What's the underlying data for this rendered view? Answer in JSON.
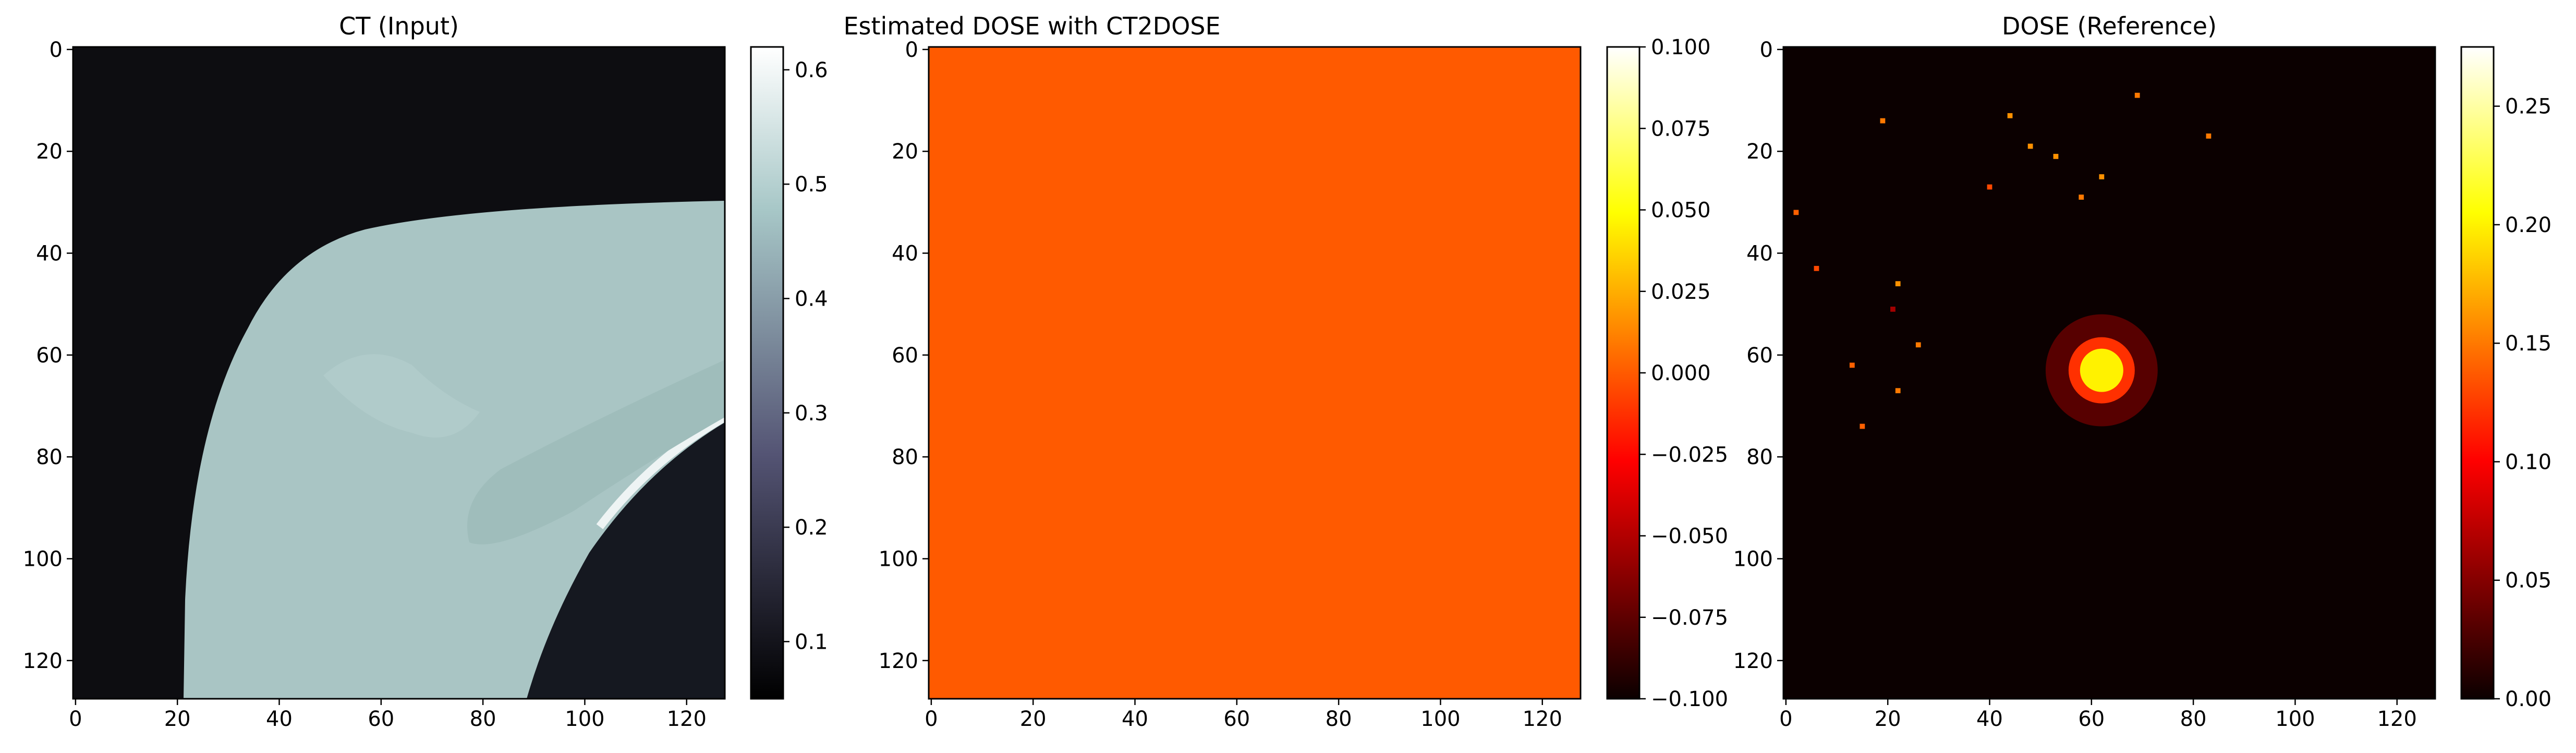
{
  "chart_data": [
    {
      "type": "heatmap",
      "title": "CT (Input)",
      "colormap": "bone",
      "x_ticks": [
        "0",
        "20",
        "40",
        "60",
        "80",
        "100",
        "120"
      ],
      "y_ticks": [
        "0",
        "20",
        "40",
        "60",
        "80",
        "100",
        "120"
      ],
      "xlim": [
        -0.5,
        127.5
      ],
      "ylim": [
        127.5,
        -0.5
      ],
      "colorbar": {
        "range": [
          0.05,
          0.62
        ],
        "ticks": [
          "0.1",
          "0.2",
          "0.3",
          "0.4",
          "0.5",
          "0.6"
        ],
        "tick_values": [
          0.1,
          0.2,
          0.3,
          0.4,
          0.5,
          0.6
        ]
      },
      "background_value": 0.05,
      "tissue_value": 0.5,
      "lung_value": 0.15,
      "bone_value": 0.62
    },
    {
      "type": "heatmap",
      "title": "Estimated DOSE with CT2DOSE",
      "colormap": "hot",
      "x_ticks": [
        "0",
        "20",
        "40",
        "60",
        "80",
        "100",
        "120"
      ],
      "y_ticks": [
        "0",
        "20",
        "40",
        "60",
        "80",
        "100",
        "120"
      ],
      "xlim": [
        -0.5,
        127.5
      ],
      "ylim": [
        127.5,
        -0.5
      ],
      "constant_value": 0.0,
      "fill_color": "#ff5a00",
      "colorbar": {
        "range": [
          -0.1,
          0.1
        ],
        "ticks": [
          "0.100",
          "0.075",
          "0.050",
          "0.025",
          "0.000",
          "−0.025",
          "−0.050",
          "−0.075",
          "−0.100"
        ],
        "tick_values": [
          0.1,
          0.075,
          0.05,
          0.025,
          0.0,
          -0.025,
          -0.05,
          -0.075,
          -0.1
        ]
      }
    },
    {
      "type": "heatmap",
      "title": "DOSE (Reference)",
      "colormap": "hot",
      "x_ticks": [
        "0",
        "20",
        "40",
        "60",
        "80",
        "100",
        "120"
      ],
      "y_ticks": [
        "0",
        "20",
        "40",
        "60",
        "80",
        "100",
        "120"
      ],
      "xlim": [
        -0.5,
        127.5
      ],
      "ylim": [
        127.5,
        -0.5
      ],
      "colorbar": {
        "range": [
          0.0,
          0.275
        ],
        "ticks": [
          "0.25",
          "0.20",
          "0.15",
          "0.10",
          "0.05",
          "0.00"
        ],
        "tick_values": [
          0.25,
          0.2,
          0.15,
          0.1,
          0.05,
          0.0
        ]
      },
      "hotspot": {
        "x": 62,
        "y": 63,
        "peak": 0.2,
        "radius": 5
      },
      "scatter_points": [
        {
          "x": 19,
          "y": 14,
          "value": 0.15
        },
        {
          "x": 44,
          "y": 13,
          "value": 0.16
        },
        {
          "x": 48,
          "y": 19,
          "value": 0.16
        },
        {
          "x": 53,
          "y": 21,
          "value": 0.16
        },
        {
          "x": 69,
          "y": 9,
          "value": 0.15
        },
        {
          "x": 83,
          "y": 17,
          "value": 0.15
        },
        {
          "x": 40,
          "y": 27,
          "value": 0.13
        },
        {
          "x": 62,
          "y": 25,
          "value": 0.16
        },
        {
          "x": 58,
          "y": 29,
          "value": 0.15
        },
        {
          "x": 2,
          "y": 32,
          "value": 0.14
        },
        {
          "x": 6,
          "y": 43,
          "value": 0.13
        },
        {
          "x": 22,
          "y": 46,
          "value": 0.16
        },
        {
          "x": 21,
          "y": 51,
          "value": 0.06
        },
        {
          "x": 26,
          "y": 58,
          "value": 0.15
        },
        {
          "x": 13,
          "y": 62,
          "value": 0.14
        },
        {
          "x": 22,
          "y": 67,
          "value": 0.15
        },
        {
          "x": 15,
          "y": 74,
          "value": 0.14
        }
      ]
    }
  ]
}
